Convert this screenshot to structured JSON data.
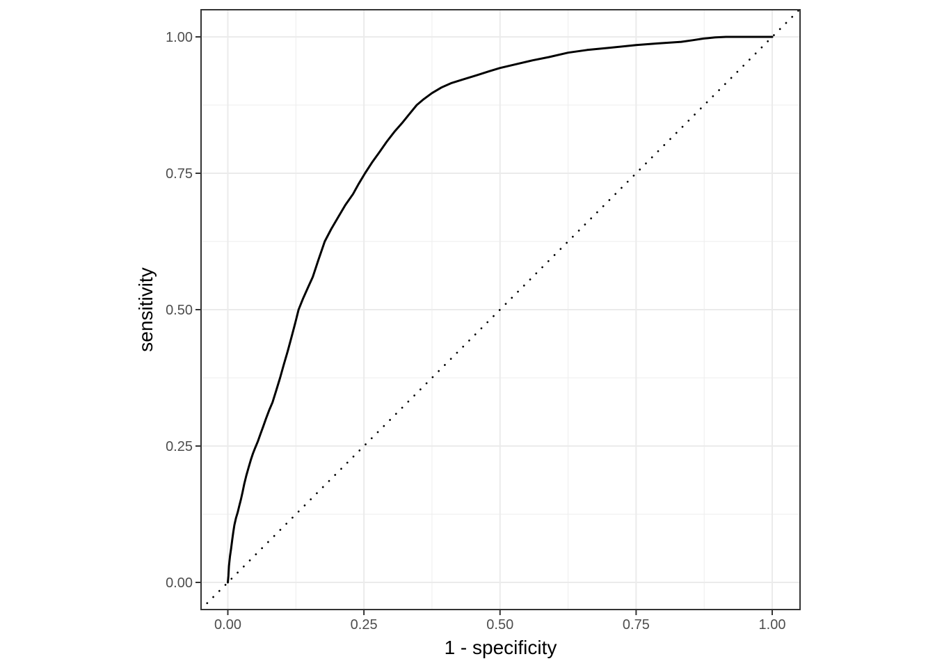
{
  "figure": {
    "title": "",
    "background": "#FFFFFF"
  },
  "colors": {
    "curve": "#000000",
    "diagonal": "#000000",
    "grid_major": "#EBEBEB",
    "grid_minor": "#EDEDED",
    "panel_border": "#333333",
    "tick_mark": "#333333",
    "tick_label": "#4D4D4D",
    "axis_title": "#000000",
    "panel_background": "#FFFFFF"
  },
  "axis": {
    "x_tick_labels": [
      "0.00",
      "0.25",
      "0.50",
      "0.75",
      "1.00"
    ],
    "y_tick_labels": [
      "0.00",
      "0.25",
      "0.50",
      "0.75",
      "1.00"
    ]
  },
  "chart_data": {
    "type": "line",
    "title": "",
    "xlabel": "1 - specificity",
    "ylabel": "sensitivity",
    "xlim": [
      -0.05,
      1.05
    ],
    "ylim": [
      -0.05,
      1.05
    ],
    "grid": "on",
    "legend": "none",
    "x_tick_values": [
      0,
      0.25,
      0.5,
      0.75,
      1.0
    ],
    "y_tick_values": [
      0,
      0.25,
      0.5,
      0.75,
      1.0
    ],
    "minor_tick_values": [
      0.125,
      0.375,
      0.625,
      0.875
    ],
    "series": [
      {
        "name": "roc-curve",
        "style": "solid",
        "color": "#000000",
        "points": [
          [
            0.0,
            0.0
          ],
          [
            0.001,
            0.012
          ],
          [
            0.002,
            0.03
          ],
          [
            0.004,
            0.048
          ],
          [
            0.006,
            0.062
          ],
          [
            0.008,
            0.078
          ],
          [
            0.01,
            0.092
          ],
          [
            0.012,
            0.105
          ],
          [
            0.015,
            0.118
          ],
          [
            0.018,
            0.128
          ],
          [
            0.021,
            0.14
          ],
          [
            0.024,
            0.152
          ],
          [
            0.027,
            0.165
          ],
          [
            0.03,
            0.18
          ],
          [
            0.034,
            0.196
          ],
          [
            0.038,
            0.21
          ],
          [
            0.042,
            0.224
          ],
          [
            0.046,
            0.236
          ],
          [
            0.05,
            0.246
          ],
          [
            0.055,
            0.258
          ],
          [
            0.06,
            0.272
          ],
          [
            0.065,
            0.286
          ],
          [
            0.07,
            0.3
          ],
          [
            0.076,
            0.316
          ],
          [
            0.082,
            0.33
          ],
          [
            0.089,
            0.352
          ],
          [
            0.096,
            0.375
          ],
          [
            0.103,
            0.4
          ],
          [
            0.11,
            0.424
          ],
          [
            0.117,
            0.45
          ],
          [
            0.124,
            0.476
          ],
          [
            0.13,
            0.5
          ],
          [
            0.138,
            0.52
          ],
          [
            0.147,
            0.54
          ],
          [
            0.156,
            0.56
          ],
          [
            0.166,
            0.59
          ],
          [
            0.178,
            0.625
          ],
          [
            0.19,
            0.648
          ],
          [
            0.203,
            0.67
          ],
          [
            0.216,
            0.692
          ],
          [
            0.23,
            0.712
          ],
          [
            0.24,
            0.73
          ],
          [
            0.252,
            0.75
          ],
          [
            0.265,
            0.77
          ],
          [
            0.278,
            0.788
          ],
          [
            0.292,
            0.808
          ],
          [
            0.306,
            0.826
          ],
          [
            0.32,
            0.842
          ],
          [
            0.333,
            0.858
          ],
          [
            0.347,
            0.875
          ],
          [
            0.36,
            0.886
          ],
          [
            0.375,
            0.897
          ],
          [
            0.392,
            0.907
          ],
          [
            0.41,
            0.915
          ],
          [
            0.432,
            0.922
          ],
          [
            0.458,
            0.93
          ],
          [
            0.48,
            0.937
          ],
          [
            0.5,
            0.943
          ],
          [
            0.53,
            0.95
          ],
          [
            0.56,
            0.957
          ],
          [
            0.59,
            0.963
          ],
          [
            0.625,
            0.971
          ],
          [
            0.66,
            0.976
          ],
          [
            0.7,
            0.98
          ],
          [
            0.75,
            0.985
          ],
          [
            0.79,
            0.988
          ],
          [
            0.833,
            0.991
          ],
          [
            0.855,
            0.994
          ],
          [
            0.874,
            0.997
          ],
          [
            0.895,
            0.999
          ],
          [
            0.915,
            1.0
          ],
          [
            1.0,
            1.0
          ]
        ]
      },
      {
        "name": "chance-diagonal",
        "style": "dotted",
        "color": "#000000",
        "points": [
          [
            -0.0492,
            -0.0492
          ],
          [
            1.0497,
            1.0497
          ]
        ]
      }
    ]
  }
}
